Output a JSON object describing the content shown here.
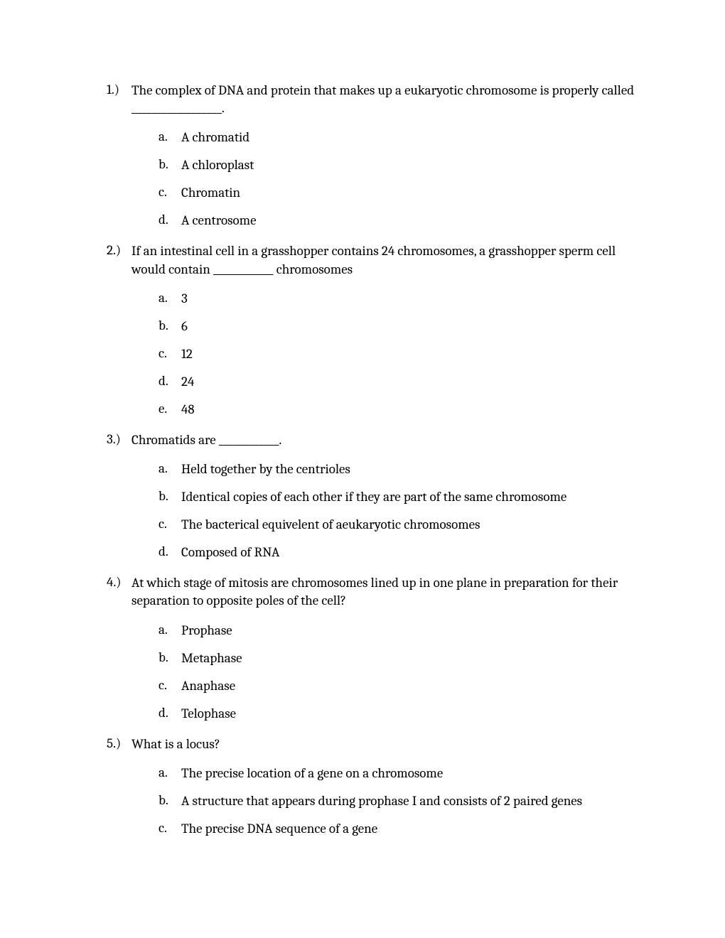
{
  "document": {
    "type": "quiz",
    "font_family": "Cambria, Georgia, serif",
    "font_size": 19,
    "text_color": "#000000",
    "background_color": "#ffffff",
    "line_height": 1.32
  },
  "questions": [
    {
      "number": "1.)",
      "text": "The complex of DNA and protein that makes up a eukaryotic chromosome is properly called __________________.",
      "answers": [
        {
          "letter": "a.",
          "text": "A chromatid"
        },
        {
          "letter": "b.",
          "text": "A chloroplast"
        },
        {
          "letter": "c.",
          "text": "Chromatin"
        },
        {
          "letter": "d.",
          "text": "A centrosome"
        }
      ]
    },
    {
      "number": "2.)",
      "text": "If an intestinal cell in a grasshopper contains 24 chromosomes, a grasshopper sperm cell would contain ____________ chromosomes",
      "answers": [
        {
          "letter": "a.",
          "text": "3"
        },
        {
          "letter": "b.",
          "text": "6"
        },
        {
          "letter": "c.",
          "text": "12"
        },
        {
          "letter": "d.",
          "text": "24"
        },
        {
          "letter": "e.",
          "text": "48"
        }
      ]
    },
    {
      "number": "3.)",
      "text": "Chromatids are ____________.",
      "answers": [
        {
          "letter": "a.",
          "text": "Held together by the centrioles"
        },
        {
          "letter": "b.",
          "text": "Identical copies of each other if they are part of the same chromosome"
        },
        {
          "letter": "c.",
          "text": "The bacterical equivelent of aeukaryotic chromosomes"
        },
        {
          "letter": "d.",
          "text": "Composed of RNA"
        }
      ]
    },
    {
      "number": "4.)",
      "text": "At which stage of mitosis are chromosomes lined up in one plane in preparation for their separation to opposite poles of the cell?",
      "answers": [
        {
          "letter": "a.",
          "text": "Prophase"
        },
        {
          "letter": "b.",
          "text": "Metaphase"
        },
        {
          "letter": "c.",
          "text": "Anaphase"
        },
        {
          "letter": "d.",
          "text": "Telophase"
        }
      ]
    },
    {
      "number": "5.)",
      "text": "What is a locus?",
      "answers": [
        {
          "letter": "a.",
          "text": "The precise location of a gene on a chromosome"
        },
        {
          "letter": "b.",
          "text": "A structure that appears during prophase I and consists of 2 paired genes"
        },
        {
          "letter": "c.",
          "text": "The precise DNA sequence of a gene"
        }
      ]
    }
  ]
}
